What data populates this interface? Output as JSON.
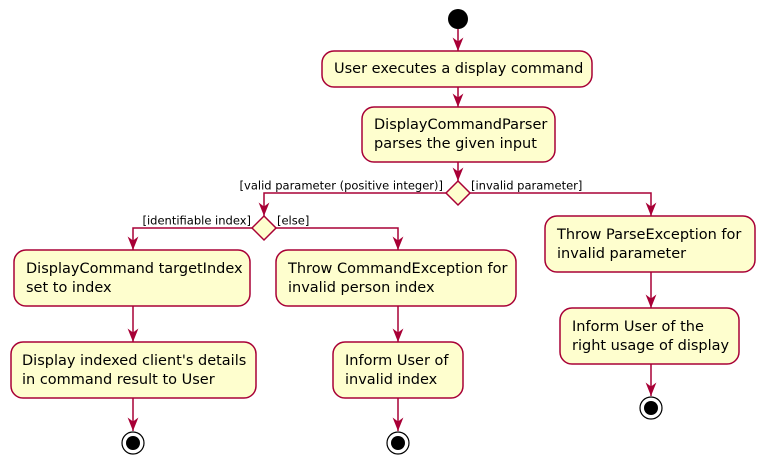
{
  "nodes": [
    {
      "lines": [
        "User executes a display command"
      ]
    },
    {
      "lines": [
        "DisplayCommandParser",
        "parses the given input"
      ]
    },
    {
      "lines": [
        "DisplayCommand targetIndex",
        "set to index"
      ]
    },
    {
      "lines": [
        "Display indexed client's details",
        "in command result to User"
      ]
    },
    {
      "lines": [
        "Throw CommandException for",
        "invalid person index"
      ]
    },
    {
      "lines": [
        "Inform User of",
        "invalid index"
      ]
    },
    {
      "lines": [
        "Throw ParseException for",
        "invalid parameter"
      ]
    },
    {
      "lines": [
        "Inform User of the",
        "right usage of display"
      ]
    }
  ],
  "guards": [
    "[valid parameter (positive integer)]",
    "[invalid parameter]",
    "[identifiable index]",
    "[else]"
  ]
}
